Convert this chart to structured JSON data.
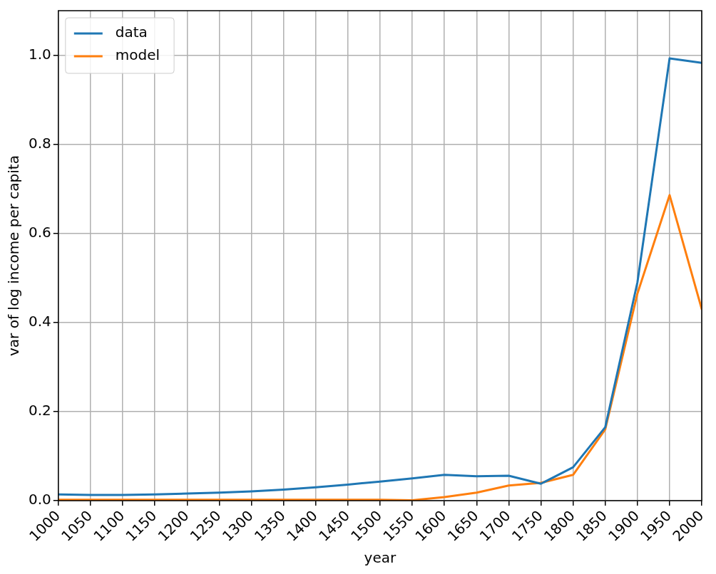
{
  "chart_data": {
    "type": "line",
    "xlabel": "year",
    "ylabel": "var of log income per capita",
    "x": [
      1000,
      1050,
      1100,
      1150,
      1200,
      1250,
      1300,
      1350,
      1400,
      1450,
      1500,
      1550,
      1600,
      1650,
      1700,
      1750,
      1800,
      1850,
      1900,
      1950,
      2000
    ],
    "series": [
      {
        "name": "data",
        "color": "#1f77b4",
        "values": [
          0.014,
          0.013,
          0.013,
          0.014,
          0.016,
          0.018,
          0.021,
          0.025,
          0.03,
          0.036,
          0.043,
          0.05,
          0.058,
          0.055,
          0.056,
          0.038,
          0.075,
          0.165,
          0.49,
          0.993,
          0.983
        ]
      },
      {
        "name": "model",
        "color": "#ff7f0e",
        "values": [
          0.002,
          0.002,
          0.002,
          0.002,
          0.002,
          0.002,
          0.002,
          0.002,
          0.002,
          0.002,
          0.002,
          0.001,
          0.008,
          0.018,
          0.034,
          0.04,
          0.058,
          0.16,
          0.465,
          0.686,
          0.43
        ]
      }
    ],
    "xlim": [
      1000,
      2000
    ],
    "xticks": [
      1000,
      1050,
      1100,
      1150,
      1200,
      1250,
      1300,
      1350,
      1400,
      1450,
      1500,
      1550,
      1600,
      1650,
      1700,
      1750,
      1800,
      1850,
      1900,
      1950,
      2000
    ],
    "ylim": [
      0,
      1.1
    ],
    "yticks": [
      {
        "value": 0,
        "label": "0.0"
      },
      {
        "value": 0.2,
        "label": "0.2"
      },
      {
        "value": 0.4,
        "label": "0.4"
      },
      {
        "value": 0.6,
        "label": "0.6"
      },
      {
        "value": 0.8,
        "label": "0.8"
      },
      {
        "value": 1,
        "label": "1.0"
      }
    ],
    "grid": true,
    "legend": "top left",
    "marker": "none",
    "line_style": "solid"
  }
}
